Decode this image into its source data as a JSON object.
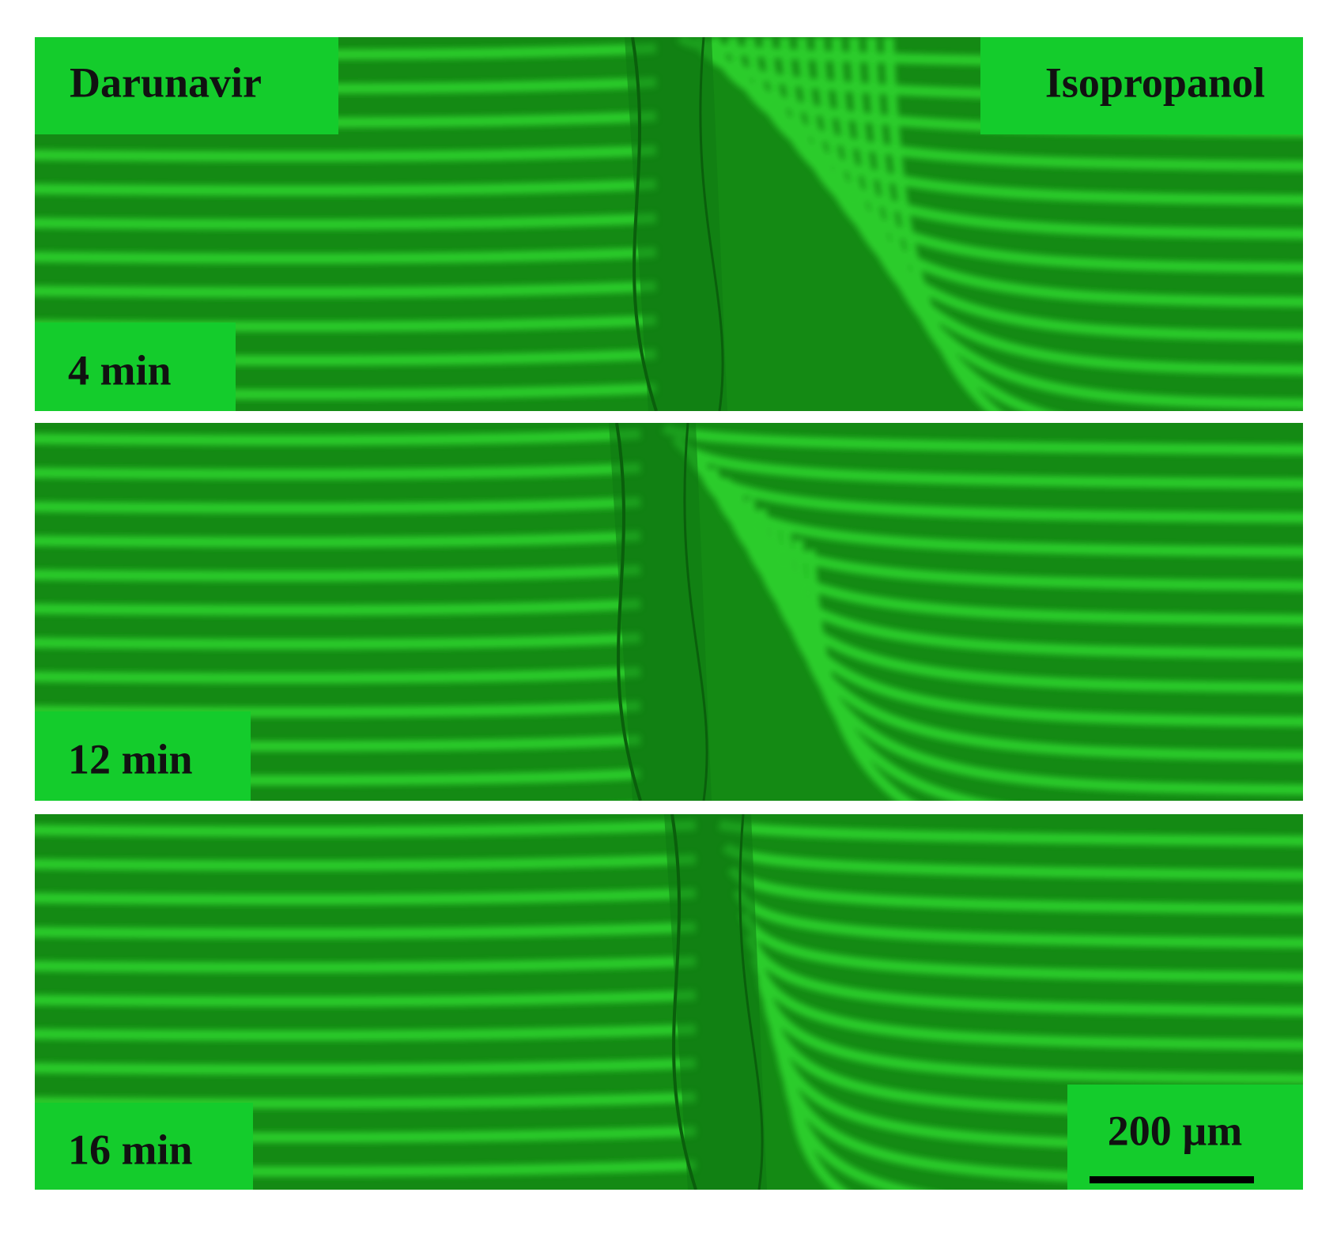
{
  "labels": {
    "left": "Darunavir",
    "right": "Isopropanol"
  },
  "panels": [
    {
      "time": "4 min"
    },
    {
      "time": "12 min"
    },
    {
      "time": "16 min"
    }
  ],
  "scale_bar": "200 µm"
}
